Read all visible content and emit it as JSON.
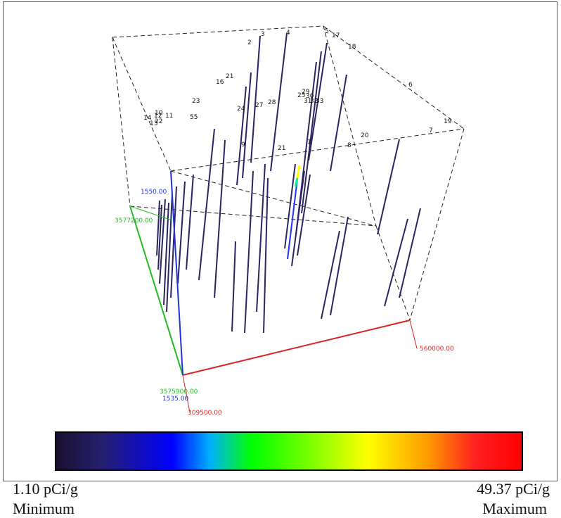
{
  "chart_data": {
    "type": "3d-line",
    "colorscale": {
      "min_value": "1.10 pCi/g",
      "min_caption": "Minimum",
      "max_value": "49.37 pCi/g",
      "max_caption": "Maximum",
      "colors": [
        "#1a1030",
        "#242070",
        "#0000ff",
        "#00b0ff",
        "#00ff00",
        "#80ff00",
        "#ffff00",
        "#ff9900",
        "#ff2020",
        "#ff0000"
      ]
    },
    "axes": {
      "x_start": "309500.00",
      "x_end": "560000.00",
      "y_start": "3575900.00",
      "y_end": "3577200.00",
      "z_start": "1535.00",
      "z_end": "1550.00",
      "x_color": "#dd2222",
      "y_color": "#22bb22",
      "z_color": "#2233dd"
    },
    "well_labels": [
      "2",
      "3",
      "4",
      "5",
      "17",
      "18",
      "16",
      "21",
      "23",
      "24",
      "27",
      "28",
      "25",
      "29",
      "30",
      "31",
      "32",
      "33",
      "14",
      "12",
      "11",
      "13",
      "10",
      "22",
      "55",
      "9",
      "21",
      "1",
      "8",
      "20",
      "7",
      "6",
      "19"
    ]
  }
}
